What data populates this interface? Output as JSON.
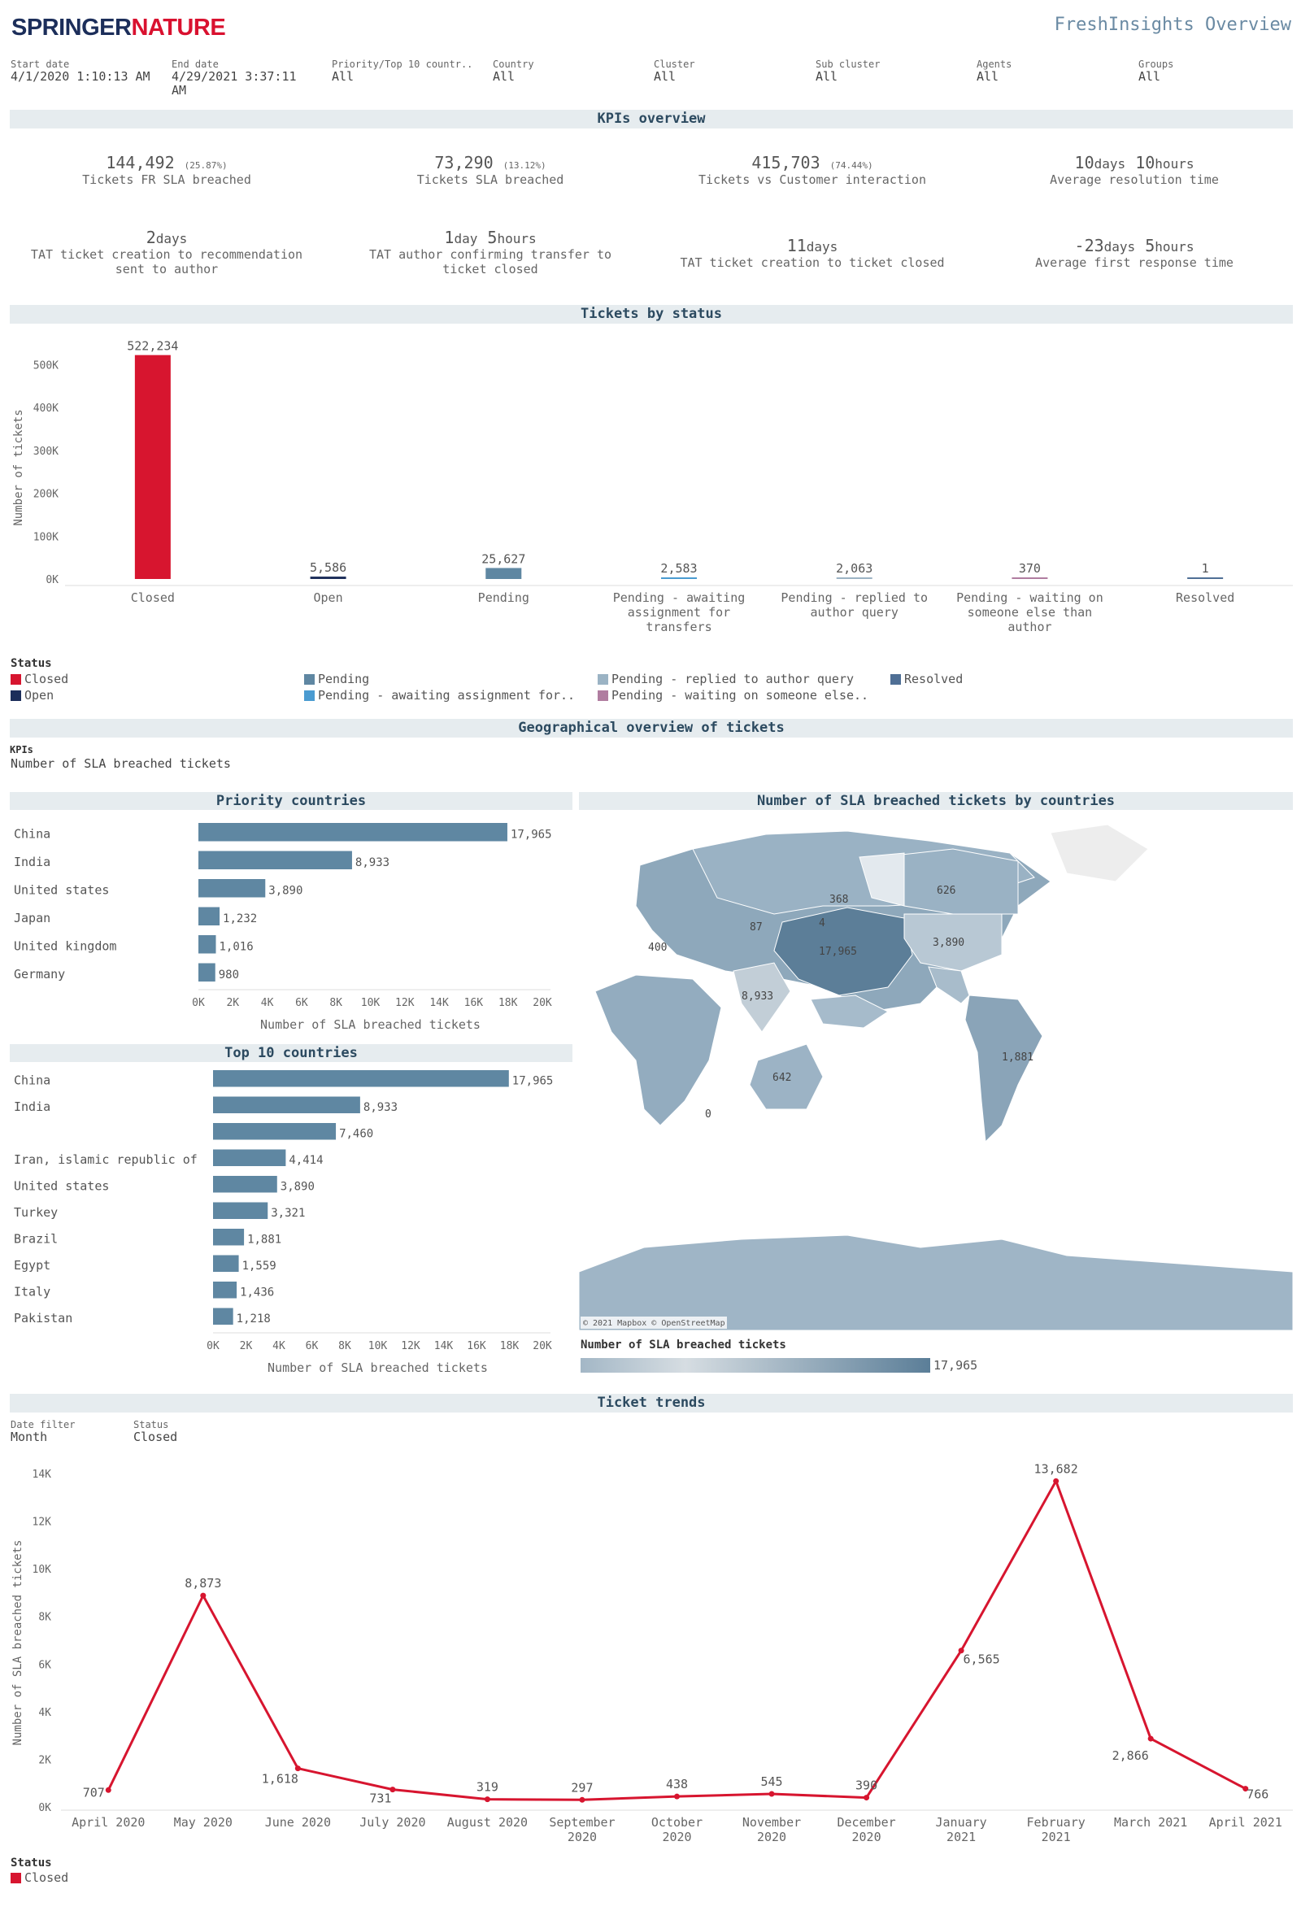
{
  "header": {
    "logo_part1": "SPRINGER",
    "logo_part2": "NATURE",
    "title": "FreshInsights Overview"
  },
  "filters": [
    {
      "label": "Start date",
      "value": "4/1/2020 1:10:13 AM"
    },
    {
      "label": "End date",
      "value": "4/29/2021 3:37:11 AM"
    },
    {
      "label": "Priority/Top 10 countr..",
      "value": "All"
    },
    {
      "label": "Country",
      "value": "All"
    },
    {
      "label": "Cluster",
      "value": "All"
    },
    {
      "label": "Sub cluster",
      "value": "All"
    },
    {
      "label": "Agents",
      "value": "All"
    },
    {
      "label": "Groups",
      "value": "All"
    }
  ],
  "sections": {
    "kpis": "KPIs overview",
    "status": "Tickets by status",
    "geo": "Geographical overview of tickets",
    "trends": "Ticket trends"
  },
  "kpis": {
    "k1": {
      "value": "144,492",
      "pct": "(25.87%)",
      "label": "Tickets FR SLA breached"
    },
    "k2": {
      "value": "73,290",
      "pct": "(13.12%)",
      "label": "Tickets SLA breached"
    },
    "k3": {
      "value": "415,703",
      "pct": "(74.44%)",
      "label": "Tickets vs Customer interaction"
    },
    "k4": {
      "n1": "10",
      "u1": "days",
      "n2": "10",
      "u2": "hours",
      "label": "Average resolution time"
    },
    "k5": {
      "n1": "2",
      "u1": "days",
      "label1": "TAT ticket creation to recommendation",
      "label2": "sent to author"
    },
    "k6": {
      "n1": "1",
      "u1": "day",
      "n2": "5",
      "u2": "hours",
      "label1": "TAT author confirming transfer to",
      "label2": "ticket closed"
    },
    "k7": {
      "n1": "11",
      "u1": "days",
      "label": "TAT ticket creation to ticket closed"
    },
    "k8": {
      "n1": "-23",
      "u1": "days",
      "n2": "5",
      "u2": "hours",
      "label": "Average first response time"
    }
  },
  "status_legend": {
    "title": "Status",
    "items": [
      {
        "label": "Closed",
        "color": "#d7152f"
      },
      {
        "label": "Open",
        "color": "#1c2e5a"
      },
      {
        "label": "Pending",
        "color": "#5f87a2"
      },
      {
        "label": "Pending - awaiting assignment for..",
        "color": "#4a9bd1"
      },
      {
        "label": "Pending - replied to author query",
        "color": "#9bb3c4"
      },
      {
        "label": "Pending - waiting on someone else..",
        "color": "#b07da0"
      },
      {
        "label": "Resolved",
        "color": "#4f6f95"
      }
    ]
  },
  "geo": {
    "kpis_label": "KPIs",
    "kpis_value": "Number of SLA breached tickets",
    "priority_title": "Priority countries",
    "top10_title": "Top 10 countries",
    "map_title": "Number of SLA breached tickets by countries",
    "map_attrib": "© 2021 Mapbox © OpenStreetMap",
    "map_legend_title": "Number of SLA breached tickets",
    "map_legend_max": "17,965",
    "map_labels": [
      "368",
      "626",
      "3,890",
      "17,965",
      "87",
      "4",
      "642",
      "1,881",
      "8,933",
      "400",
      "0"
    ]
  },
  "chart_data": [
    {
      "type": "bar",
      "title": "Tickets by status",
      "ylabel": "Number of tickets",
      "ylim": [
        0,
        550000
      ],
      "yticks": [
        "0K",
        "100K",
        "200K",
        "300K",
        "400K",
        "500K"
      ],
      "categories": [
        [
          "Closed"
        ],
        [
          "Open"
        ],
        [
          "Pending"
        ],
        [
          "Pending - awaiting",
          "assignment for",
          "transfers"
        ],
        [
          "Pending - replied to",
          "author query"
        ],
        [
          "Pending - waiting on",
          "someone else than",
          "author"
        ],
        [
          "Resolved"
        ]
      ],
      "values": [
        522234,
        5586,
        25627,
        2583,
        2063,
        370,
        1
      ],
      "labels": [
        "522,234",
        "5,586",
        "25,627",
        "2,583",
        "2,063",
        "370",
        "1"
      ],
      "colors": [
        "#d7152f",
        "#1c2e5a",
        "#5f87a2",
        "#4a9bd1",
        "#9bb3c4",
        "#b07da0",
        "#4f6f95"
      ]
    },
    {
      "type": "bar",
      "orientation": "horizontal",
      "title": "Priority countries",
      "xlabel": "Number of SLA breached tickets",
      "xlim": [
        0,
        20000
      ],
      "xticks": [
        "0K",
        "2K",
        "4K",
        "6K",
        "8K",
        "10K",
        "12K",
        "14K",
        "16K",
        "18K",
        "20K"
      ],
      "categories": [
        "China",
        "India",
        "United states",
        "Japan",
        "United kingdom",
        "Germany"
      ],
      "values": [
        17965,
        8933,
        3890,
        1232,
        1016,
        980
      ],
      "labels": [
        "17,965",
        "8,933",
        "3,890",
        "1,232",
        "1,016",
        "980"
      ]
    },
    {
      "type": "bar",
      "orientation": "horizontal",
      "title": "Top 10 countries",
      "xlabel": "Number of SLA breached tickets",
      "xlim": [
        0,
        20000
      ],
      "xticks": [
        "0K",
        "2K",
        "4K",
        "6K",
        "8K",
        "10K",
        "12K",
        "14K",
        "16K",
        "18K",
        "20K"
      ],
      "categories": [
        "China",
        "India",
        "",
        "Iran, islamic republic of",
        "United states",
        "Turkey",
        "Brazil",
        "Egypt",
        "Italy",
        "Pakistan"
      ],
      "values": [
        17965,
        8933,
        7460,
        4414,
        3890,
        3321,
        1881,
        1559,
        1436,
        1218
      ],
      "labels": [
        "17,965",
        "8,933",
        "7,460",
        "4,414",
        "3,890",
        "3,321",
        "1,881",
        "1,559",
        "1,436",
        "1,218"
      ]
    },
    {
      "type": "line",
      "title": "Ticket trends",
      "ylabel": "Number of SLA breached tickets",
      "ylim": [
        0,
        14000
      ],
      "yticks": [
        "0K",
        "2K",
        "4K",
        "6K",
        "8K",
        "10K",
        "12K",
        "14K"
      ],
      "categories": [
        [
          "April 2020"
        ],
        [
          "May 2020"
        ],
        [
          "June 2020"
        ],
        [
          "July 2020"
        ],
        [
          "August 2020"
        ],
        [
          "September",
          "2020"
        ],
        [
          "October",
          "2020"
        ],
        [
          "November",
          "2020"
        ],
        [
          "December",
          "2020"
        ],
        [
          "January",
          "2021"
        ],
        [
          "February",
          "2021"
        ],
        [
          "March 2021"
        ],
        [
          "April 2021"
        ]
      ],
      "series": [
        {
          "name": "Closed",
          "values": [
            707,
            8873,
            1618,
            731,
            319,
            297,
            438,
            545,
            390,
            6565,
            13682,
            2866,
            766
          ]
        }
      ],
      "labels": [
        "707",
        "8,873",
        "1,618",
        "731",
        "319",
        "297",
        "438",
        "545",
        "390",
        "6,565",
        "13,682",
        "2,866",
        "766"
      ],
      "color": "#d7152f"
    }
  ],
  "trends": {
    "filter1_label": "Date filter",
    "filter1_value": "Month",
    "filter2_label": "Status",
    "filter2_value": "Closed",
    "legend_title": "Status",
    "legend_item": "Closed",
    "legend_color": "#d7152f"
  }
}
